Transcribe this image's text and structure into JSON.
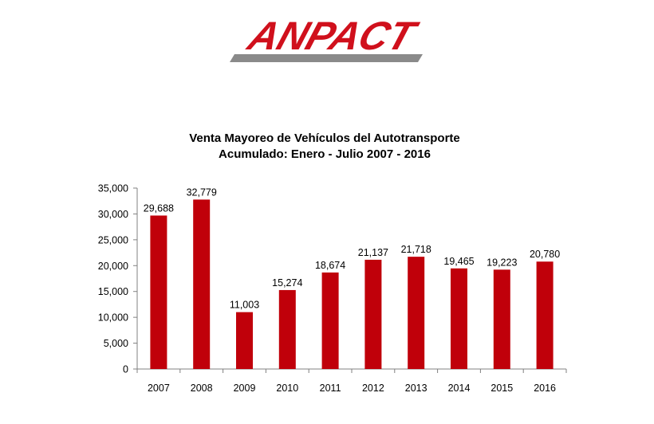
{
  "logo": {
    "text": "ANPACT",
    "color": "#d0101c",
    "underline_color": "#8a8a8a"
  },
  "chart_data": {
    "type": "bar",
    "title": "Venta Mayoreo de Vehículos del Autotransporte",
    "subtitle": "Acumulado: Enero -  Julio  2007 - 2016",
    "categories": [
      "2007",
      "2008",
      "2009",
      "2010",
      "2011",
      "2012",
      "2013",
      "2014",
      "2015",
      "2016"
    ],
    "values": [
      29688,
      32779,
      11003,
      15274,
      18674,
      21137,
      21718,
      19465,
      19223,
      20780
    ],
    "data_labels": [
      "29,688",
      "32,779",
      "11,003",
      "15,274",
      "18,674",
      "21,137",
      "21,718",
      "19,465",
      "19,223",
      "20,780"
    ],
    "ylim": [
      0,
      35000
    ],
    "yticks": [
      0,
      5000,
      10000,
      15000,
      20000,
      25000,
      30000,
      35000
    ],
    "ytick_labels": [
      "0",
      "5,000",
      "10,000",
      "15,000",
      "20,000",
      "25,000",
      "30,000",
      "35,000"
    ],
    "bar_color": "#c0000a",
    "grid": false,
    "legend": "none"
  }
}
